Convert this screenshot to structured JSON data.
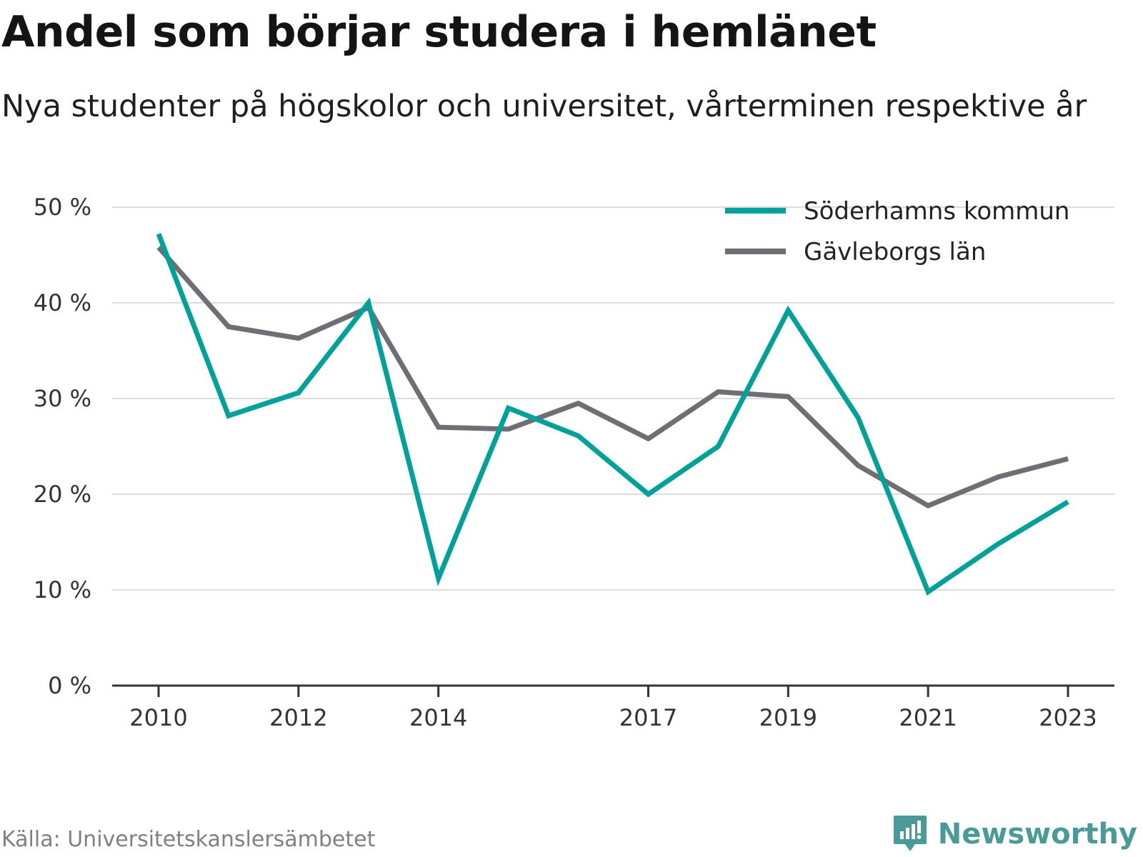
{
  "title": "Andel som börjar studera i hemlänet",
  "subtitle": "Nya studenter på högskolor och universitet, vårterminen respektive år",
  "source": "Källa: Universitetskanslersämbetet",
  "brand": "Newsworthy",
  "colors": {
    "soderhamn": "#00a19a",
    "gavleborg": "#6f6e75",
    "grid": "#dcdcdc",
    "axis": "#333333",
    "brand": "#4a9b98"
  },
  "chart_data": {
    "type": "line",
    "title": "Andel som börjar studera i hemlänet",
    "subtitle": "Nya studenter på högskolor och universitet, vårterminen respektive år",
    "x": [
      2010,
      2011,
      2012,
      2013,
      2014,
      2015,
      2016,
      2017,
      2018,
      2019,
      2020,
      2021,
      2022,
      2023
    ],
    "x_tick_labels": [
      "2010",
      "2012",
      "2014",
      "2017",
      "2019",
      "2021",
      "2023"
    ],
    "y_tick_labels": [
      "0 %",
      "10 %",
      "20 %",
      "30 %",
      "40 %",
      "50 %"
    ],
    "ylim": [
      0,
      50
    ],
    "grid": true,
    "legend_position": "top-right",
    "series": [
      {
        "name": "Söderhamns kommun",
        "color": "#00a19a",
        "values": [
          47.2,
          28.2,
          30.6,
          40.0,
          11.2,
          29.0,
          26.1,
          20.0,
          25.0,
          39.2,
          28.0,
          9.8,
          14.8,
          19.2
        ]
      },
      {
        "name": "Gävleborgs län",
        "color": "#6f6e75",
        "values": [
          45.8,
          37.5,
          36.3,
          39.5,
          27.0,
          26.8,
          29.5,
          25.8,
          30.7,
          30.2,
          23.0,
          18.8,
          21.8,
          23.7
        ]
      }
    ]
  }
}
